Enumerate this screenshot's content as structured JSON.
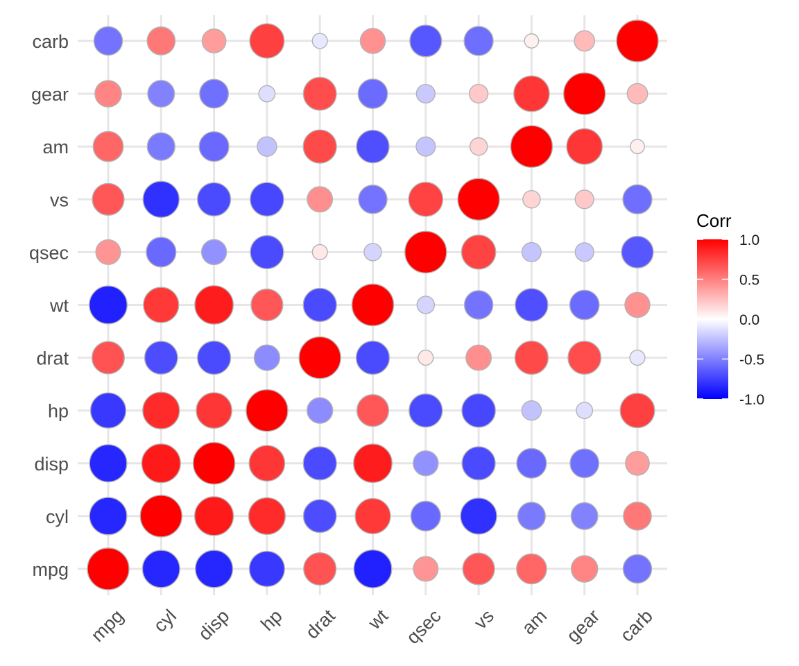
{
  "chart_data": {
    "type": "correlation-circle-matrix",
    "title": "",
    "xlabel": "",
    "ylabel": "",
    "variables": [
      "mpg",
      "cyl",
      "disp",
      "hp",
      "drat",
      "wt",
      "qsec",
      "vs",
      "am",
      "gear",
      "carb"
    ],
    "matrix": [
      [
        1.0,
        -0.85,
        -0.85,
        -0.78,
        0.68,
        -0.87,
        0.42,
        0.66,
        0.6,
        0.48,
        -0.55
      ],
      [
        -0.85,
        1.0,
        0.9,
        0.83,
        -0.7,
        0.78,
        -0.59,
        -0.81,
        -0.52,
        -0.49,
        0.53
      ],
      [
        -0.85,
        0.9,
        1.0,
        0.79,
        -0.71,
        0.89,
        -0.43,
        -0.71,
        -0.59,
        -0.56,
        0.39
      ],
      [
        -0.78,
        0.83,
        0.79,
        1.0,
        -0.45,
        0.66,
        -0.71,
        -0.72,
        -0.24,
        -0.13,
        0.75
      ],
      [
        0.68,
        -0.7,
        -0.71,
        -0.45,
        1.0,
        -0.71,
        0.09,
        0.44,
        0.71,
        0.7,
        -0.09
      ],
      [
        -0.87,
        0.78,
        0.89,
        0.66,
        -0.71,
        1.0,
        -0.17,
        -0.55,
        -0.69,
        -0.58,
        0.43
      ],
      [
        0.42,
        -0.59,
        -0.43,
        -0.71,
        0.09,
        -0.17,
        1.0,
        0.74,
        -0.23,
        -0.21,
        -0.66
      ],
      [
        0.66,
        -0.81,
        -0.71,
        -0.72,
        0.44,
        -0.55,
        0.74,
        1.0,
        0.17,
        0.21,
        -0.57
      ],
      [
        0.6,
        -0.52,
        -0.59,
        -0.24,
        0.71,
        -0.69,
        -0.23,
        0.17,
        1.0,
        0.79,
        0.06
      ],
      [
        0.48,
        -0.49,
        -0.56,
        -0.13,
        0.7,
        -0.58,
        -0.21,
        0.21,
        0.79,
        1.0,
        0.27
      ],
      [
        -0.55,
        0.53,
        0.39,
        0.75,
        -0.09,
        0.43,
        -0.66,
        -0.57,
        0.06,
        0.27,
        1.0
      ]
    ],
    "color_scale": {
      "low": "#0000ff",
      "mid": "#ffffff",
      "high": "#ff0000",
      "limits": [
        -1,
        1
      ]
    },
    "legend": {
      "title": "Corr",
      "ticks": [
        {
          "value": 1.0,
          "label": "1.0"
        },
        {
          "value": 0.5,
          "label": "0.5"
        },
        {
          "value": 0.0,
          "label": "0.0"
        },
        {
          "value": -0.5,
          "label": "-0.5"
        },
        {
          "value": -1.0,
          "label": "-1.0"
        }
      ],
      "position": "right"
    },
    "grid": true
  }
}
